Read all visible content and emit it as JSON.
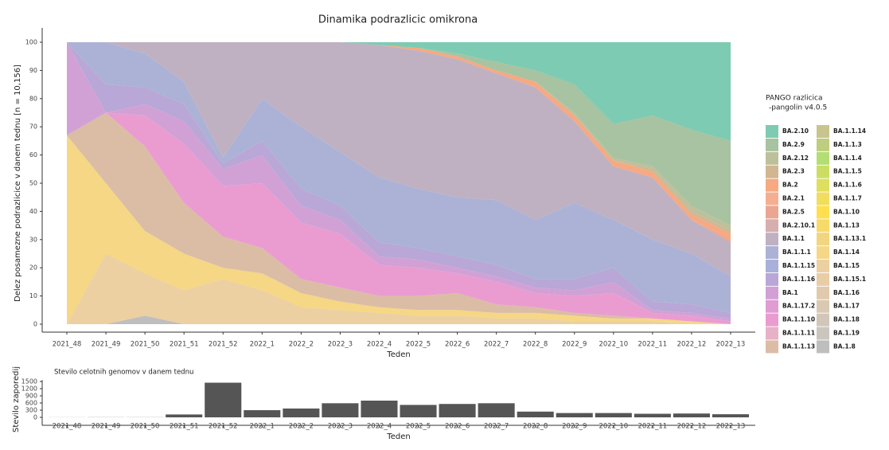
{
  "chart_data": [
    {
      "type": "area",
      "title": "Dinamika podrazlicic omikrona",
      "x_label": "Teden",
      "y_label": "Delez posamezne podrazlicice v danem tednu [n = 10,156]",
      "legend_title": [
        "PANGO razlicica",
        "-pangolin v4.0.5"
      ],
      "categories": [
        "2021_48",
        "2021_49",
        "2021_50",
        "2021_51",
        "2021_52",
        "2022_1",
        "2022_2",
        "2022_3",
        "2022_4",
        "2022_5",
        "2022_6",
        "2022_7",
        "2022_8",
        "2022_9",
        "2022_10",
        "2022_11",
        "2022_12",
        "2022_13"
      ],
      "ylim": [
        0,
        100
      ],
      "yticks": [
        0,
        10,
        20,
        30,
        40,
        50,
        60,
        70,
        80,
        90,
        100
      ],
      "series": [
        {
          "name": "BA.2.10",
          "color": "#66c2a5",
          "values": [
            0,
            0,
            0,
            0,
            0,
            0,
            0,
            0,
            1,
            2,
            4,
            7,
            10,
            15,
            29,
            26,
            31,
            35
          ]
        },
        {
          "name": "BA.2.9",
          "color": "#98b891",
          "values": [
            0,
            0,
            0,
            0,
            0,
            0,
            0,
            0,
            0,
            0,
            1,
            3,
            4,
            10,
            12,
            18,
            27,
            30
          ]
        },
        {
          "name": "BA.2.12",
          "color": "#b3b58a",
          "values": [
            0,
            0,
            0,
            0,
            0,
            0,
            0,
            0,
            0,
            0,
            0,
            0,
            0,
            1,
            1,
            1,
            2,
            2
          ]
        },
        {
          "name": "BA.2.3",
          "color": "#c9a97e",
          "values": [
            0,
            0,
            0,
            0,
            0,
            0,
            0,
            0,
            0,
            0,
            0,
            0,
            0,
            0,
            0,
            1,
            1,
            1
          ]
        },
        {
          "name": "BA.2",
          "color": "#f59a6c",
          "values": [
            0,
            0,
            0,
            0,
            0,
            0,
            0,
            0,
            0,
            1,
            1,
            1,
            2,
            2,
            2,
            2,
            2,
            2
          ]
        },
        {
          "name": "BA.2.1",
          "color": "#f4a07e",
          "values": [
            0,
            0,
            0,
            0,
            0,
            0,
            0,
            0,
            0,
            0,
            0,
            0,
            0,
            0,
            0,
            0,
            0,
            0
          ]
        },
        {
          "name": "BA.2.5",
          "color": "#e7967e",
          "values": [
            0,
            0,
            0,
            0,
            0,
            0,
            0,
            0,
            0,
            0,
            0,
            0,
            0,
            0,
            0,
            0,
            0,
            1
          ]
        },
        {
          "name": "BA.2.10.1",
          "color": "#cfa0a0",
          "values": [
            0,
            0,
            0,
            0,
            0,
            0,
            0,
            0,
            0,
            0,
            0,
            0,
            0,
            0,
            0,
            0,
            0,
            0
          ]
        },
        {
          "name": "BA.1.1",
          "color": "#b4a3b6",
          "values": [
            0,
            0,
            4,
            14,
            41,
            20,
            30,
            39,
            47,
            49,
            49,
            45,
            47,
            29,
            19,
            22,
            12,
            12
          ]
        },
        {
          "name": "BA.1.1.1",
          "color": "#9ea4cf",
          "values": [
            0,
            15,
            12,
            8,
            2,
            15,
            22,
            19,
            23,
            21,
            21,
            23,
            21,
            27,
            17,
            22,
            18,
            13
          ]
        },
        {
          "name": "BA.1.1.15",
          "color": "#9aa2d3",
          "values": [
            0,
            0,
            0,
            0,
            0,
            0,
            0,
            0,
            0,
            0,
            0,
            0,
            0,
            0,
            0,
            0,
            0,
            0
          ]
        },
        {
          "name": "BA.1.1.16",
          "color": "#ab98d0",
          "values": [
            0,
            10,
            6,
            6,
            2,
            5,
            6,
            5,
            5,
            4,
            4,
            4,
            3,
            4,
            5,
            3,
            3,
            2
          ]
        },
        {
          "name": "BA.1",
          "color": "#c991cf",
          "values": [
            33,
            0,
            4,
            8,
            6,
            10,
            6,
            5,
            3,
            3,
            2,
            2,
            2,
            2,
            4,
            1,
            1,
            1
          ]
        },
        {
          "name": "BA.1.17.2",
          "color": "#d98ccc",
          "values": [
            0,
            0,
            0,
            0,
            0,
            0,
            0,
            0,
            0,
            0,
            0,
            0,
            0,
            0,
            0,
            0,
            0,
            0
          ]
        },
        {
          "name": "BA.1.1.10",
          "color": "#e68bc8",
          "values": [
            0,
            0,
            11,
            21,
            18,
            23,
            20,
            19,
            11,
            10,
            7,
            8,
            5,
            6,
            8,
            2,
            2,
            1
          ]
        },
        {
          "name": "BA.1.1.11",
          "color": "#e3a3bd",
          "values": [
            0,
            0,
            0,
            0,
            0,
            0,
            0,
            0,
            0,
            0,
            0,
            0,
            0,
            0,
            0,
            0,
            0,
            0
          ]
        },
        {
          "name": "BA.1.1.13",
          "color": "#d5b295",
          "values": [
            0,
            25,
            30,
            18,
            11,
            9,
            5,
            5,
            4,
            5,
            6,
            3,
            2,
            1,
            1,
            0,
            0,
            0
          ]
        },
        {
          "name": "BA.1.1.14",
          "color": "#c0ba7a",
          "values": [
            0,
            0,
            0,
            0,
            0,
            0,
            0,
            0,
            0,
            0,
            0,
            0,
            0,
            0,
            0,
            0,
            0,
            0
          ]
        },
        {
          "name": "BA.1.1.3",
          "color": "#b4c469",
          "values": [
            0,
            0,
            0,
            0,
            0,
            0,
            0,
            0,
            0,
            0,
            0,
            0,
            0,
            0,
            0,
            0,
            0,
            0
          ]
        },
        {
          "name": "BA.1.1.4",
          "color": "#a5d85a",
          "values": [
            0,
            0,
            0,
            0,
            0,
            0,
            0,
            0,
            0,
            0,
            0,
            0,
            0,
            0,
            0,
            0,
            0,
            0
          ]
        },
        {
          "name": "BA.1.1.5",
          "color": "#c2d848",
          "values": [
            0,
            0,
            0,
            0,
            0,
            0,
            0,
            0,
            0,
            0,
            0,
            0,
            0,
            0,
            0,
            0,
            0,
            0
          ]
        },
        {
          "name": "BA.1.1.6",
          "color": "#d8d843",
          "values": [
            0,
            0,
            0,
            0,
            0,
            0,
            0,
            0,
            0,
            0,
            0,
            0,
            0,
            0,
            0,
            0,
            0,
            0
          ]
        },
        {
          "name": "BA.1.1.7",
          "color": "#eed841",
          "values": [
            0,
            0,
            0,
            0,
            0,
            0,
            0,
            0,
            0,
            0,
            0,
            0,
            0,
            0,
            0,
            0,
            0,
            0
          ]
        },
        {
          "name": "BA.1.10",
          "color": "#ffd92f",
          "values": [
            0,
            0,
            0,
            0,
            0,
            0,
            0,
            0,
            0,
            0,
            0,
            0,
            0,
            0,
            0,
            0,
            0,
            0
          ]
        },
        {
          "name": "BA.1.13",
          "color": "#f7d34f",
          "values": [
            0,
            0,
            0,
            0,
            0,
            0,
            0,
            0,
            0,
            0,
            0,
            0,
            0,
            0,
            0,
            0,
            0,
            0
          ]
        },
        {
          "name": "BA.1.13.1",
          "color": "#efce69",
          "values": [
            0,
            0,
            0,
            0,
            0,
            0,
            0,
            0,
            0,
            0,
            0,
            0,
            0,
            0,
            0,
            0,
            0,
            0
          ]
        },
        {
          "name": "BA.1.14",
          "color": "#f3d070",
          "values": [
            67,
            25,
            15,
            13,
            4,
            6,
            5,
            3,
            2,
            2,
            2,
            2,
            2,
            2,
            1,
            1,
            1,
            0
          ]
        },
        {
          "name": "BA.1.15",
          "color": "#e9c891",
          "values": [
            0,
            25,
            15,
            12,
            16,
            12,
            6,
            5,
            4,
            3,
            3,
            2,
            2,
            1,
            1,
            1,
            0,
            0
          ]
        },
        {
          "name": "BA.1.15.1",
          "color": "#e5c495",
          "values": [
            0,
            0,
            0,
            0,
            0,
            0,
            0,
            0,
            0,
            0,
            0,
            0,
            0,
            0,
            0,
            0,
            0,
            0
          ]
        },
        {
          "name": "BA.1.16",
          "color": "#dcc09f",
          "values": [
            0,
            0,
            0,
            0,
            0,
            0,
            0,
            0,
            0,
            0,
            0,
            0,
            0,
            0,
            0,
            0,
            0,
            0
          ]
        },
        {
          "name": "BA.1.17",
          "color": "#d2bfa6",
          "values": [
            0,
            0,
            0,
            0,
            0,
            0,
            0,
            0,
            0,
            0,
            0,
            0,
            0,
            0,
            0,
            0,
            0,
            0
          ]
        },
        {
          "name": "BA.1.18",
          "color": "#c9bcaa",
          "values": [
            0,
            0,
            0,
            0,
            0,
            0,
            0,
            0,
            0,
            0,
            0,
            0,
            0,
            0,
            0,
            0,
            0,
            0
          ]
        },
        {
          "name": "BA.1.19",
          "color": "#c1bcb3",
          "values": [
            0,
            0,
            0,
            0,
            0,
            0,
            0,
            0,
            0,
            0,
            0,
            0,
            0,
            0,
            0,
            0,
            0,
            0
          ]
        },
        {
          "name": "BA.1.8",
          "color": "#b3b3b3",
          "values": [
            0,
            0,
            3,
            0,
            0,
            0,
            0,
            0,
            0,
            0,
            0,
            0,
            0,
            0,
            0,
            0,
            0,
            0
          ]
        }
      ]
    },
    {
      "type": "bar",
      "subtitle": "Stevilo celotnih genomov v danem tednu",
      "x_label": "Teden",
      "y_label": "Stevilo zaporedij",
      "categories": [
        "2021_48",
        "2021_49",
        "2021_50",
        "2021_51",
        "2021_52",
        "2022_1",
        "2022_2",
        "2022_3",
        "2022_4",
        "2022_5",
        "2022_6",
        "2022_7",
        "2022_8",
        "2022_9",
        "2022_10",
        "2022_11",
        "2022_12",
        "2022_13"
      ],
      "values": [
        3,
        5,
        5,
        120,
        1450,
        300,
        370,
        590,
        700,
        520,
        560,
        590,
        240,
        180,
        180,
        150,
        160,
        130
      ],
      "color": "#555555",
      "ylim": [
        0,
        1500
      ],
      "yticks": [
        0,
        300,
        600,
        900,
        1200,
        1500
      ]
    }
  ]
}
